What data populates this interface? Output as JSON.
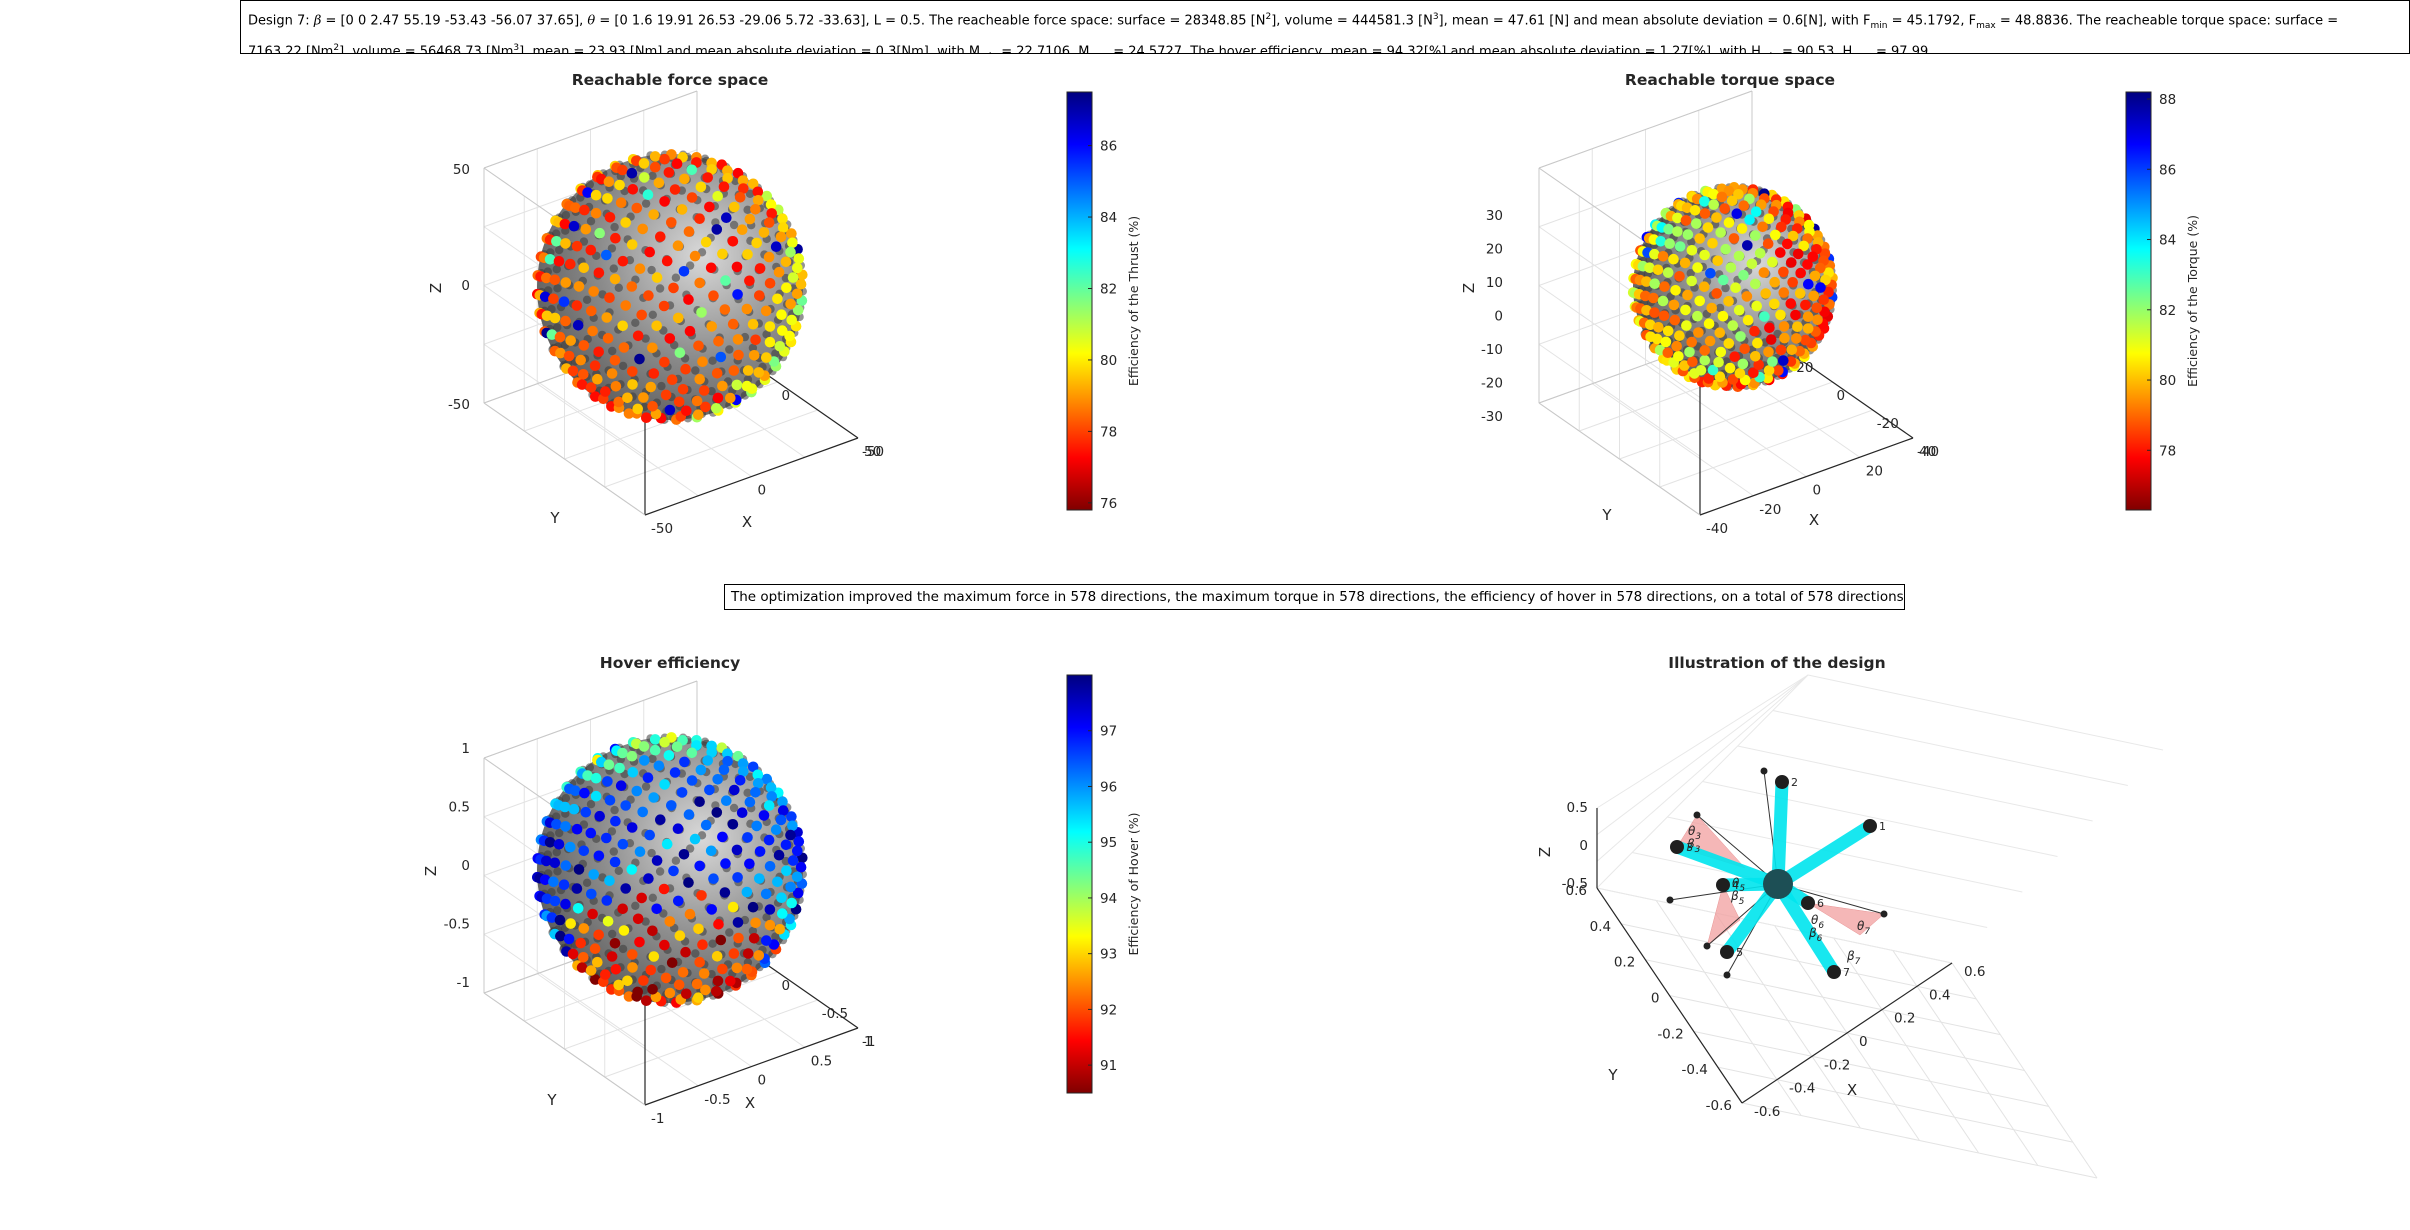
{
  "header": {
    "p1": "Design 7: ",
    "beta": "β",
    "p2": " = [0 0 2.47 55.19 -53.43 -56.07 37.65], ",
    "theta": "θ",
    "p3": " = [0 1.6 19.91 26.53 -29.06 5.72 -33.63], L = 0.5. The reacheable force space: surface = 28348.85 [N",
    "sup1": "2",
    "p4": "], volume = 444581.3 [N",
    "sup2": "3",
    "p5": "], mean = 47.61 [N] and mean absolute deviation = 0.6[N], with F",
    "sub1": "min",
    "p6": " = 45.1792, F",
    "sub2": "max",
    "p7": " = 48.8836. The reacheable torque space: surface =",
    "l2a": "7163.22 [Nm",
    "sup3": "2",
    "l2b": "], volume = 56468.73 [Nm",
    "sup4": "3",
    "l2c": "], mean = 23.93 [Nm] and mean absolute deviation = 0.3[Nm], with M",
    "sub3": "min",
    "l2d": " = 22.7106, M",
    "sub4": "max",
    "l2e": " = 24.5727. The hover efficiency, mean = 94.32[%] and mean absolute deviation = 1.27[%], with H",
    "sub5": "min",
    "l2f": " = 90.53, H",
    "sub6": "max",
    "l2g": " = 97.99"
  },
  "summary": "The optimization improved the maximum force in 578 directions, the maximum torque in 578 directions, the efficiency of hover in 578 directions, on a total of 578 directions",
  "colors": {
    "sphere": "#8c8c8c",
    "jet": [
      "#800000",
      "#ff0000",
      "#ff8000",
      "#ffff00",
      "#80ff80",
      "#00ffff",
      "#0080ff",
      "#0000ff",
      "#000080"
    ],
    "arm": "#00e5ee",
    "sector": "#f2a0a0"
  },
  "chart_data": [
    {
      "type": "scatter",
      "title": "Reachable force space",
      "xlabel": "X",
      "ylabel": "Y",
      "zlabel": "Z",
      "xticks": [
        "-50",
        "0",
        "50"
      ],
      "yticks": [
        "-50",
        "0",
        "50"
      ],
      "zticks": [
        "-50",
        "0",
        "50"
      ],
      "xlim": [
        -50,
        50
      ],
      "ylim": [
        -50,
        50
      ],
      "zlim": [
        -50,
        50
      ],
      "surface": "sphere",
      "radius_mean": 47.61,
      "point_count": 578,
      "colorbar": {
        "label": "Efficiency of the Thrust (%)",
        "ticks": [
          "76",
          "78",
          "80",
          "82",
          "84",
          "86"
        ],
        "range": [
          75.8,
          87.5
        ]
      },
      "value_distribution": {
        "mean_color_value": 78.5
      }
    },
    {
      "type": "scatter",
      "title": "Reachable torque space",
      "xlabel": "X",
      "ylabel": "Y",
      "zlabel": "Z",
      "xticks": [
        "-40",
        "-20",
        "0",
        "20",
        "40"
      ],
      "yticks": [
        "-40",
        "-20",
        "0",
        "20",
        "40"
      ],
      "zticks": [
        "-30",
        "-20",
        "-10",
        "0",
        "10",
        "20",
        "30"
      ],
      "xlim": [
        -40,
        40
      ],
      "ylim": [
        -40,
        40
      ],
      "zlim": [
        -30,
        30
      ],
      "surface": "sphere",
      "radius_mean": 23.93,
      "point_count": 578,
      "colorbar": {
        "label": "Efficiency of the Torque (%)",
        "ticks": [
          "78",
          "80",
          "82",
          "84",
          "86",
          "88"
        ],
        "range": [
          76.3,
          88.2
        ]
      }
    },
    {
      "type": "scatter",
      "title": "Hover efficiency",
      "xlabel": "X",
      "ylabel": "Y",
      "zlabel": "Z",
      "xticks": [
        "-1",
        "-0.5",
        "0",
        "0.5",
        "1"
      ],
      "yticks": [
        "-1",
        "-0.5",
        "0",
        "0.5",
        "1"
      ],
      "zticks": [
        "-1",
        "-0.5",
        "0",
        "0.5",
        "1"
      ],
      "xlim": [
        -1,
        1
      ],
      "ylim": [
        -1,
        1
      ],
      "zlim": [
        -1,
        1
      ],
      "surface": "sphere",
      "radius_mean": 1,
      "point_count": 578,
      "colorbar": {
        "label": "Efficiency of Hover (%)",
        "ticks": [
          "91",
          "92",
          "93",
          "94",
          "95",
          "96",
          "97"
        ],
        "range": [
          90.5,
          98
        ]
      }
    },
    {
      "type": "diagram3d",
      "title": "Illustration of the design",
      "xlabel": "X",
      "ylabel": "Y",
      "zlabel": "Z",
      "xticks": [
        "-0.6",
        "-0.4",
        "-0.2",
        "0",
        "0.2",
        "0.4",
        "0.6"
      ],
      "yticks": [
        "-0.6",
        "-0.4",
        "-0.2",
        "0",
        "0.2",
        "0.4",
        "0.6"
      ],
      "zticks": [
        "-0.5",
        "0",
        "0.5"
      ],
      "arm_labels": [
        "1",
        "2",
        "3",
        "4",
        "5",
        "6",
        "7"
      ],
      "beta_deg": [
        0,
        0,
        2.47,
        55.19,
        -53.43,
        -56.07,
        37.65
      ],
      "theta_deg": [
        0,
        1.6,
        19.91,
        26.53,
        -29.06,
        5.72,
        -33.63
      ],
      "arm_length": 0.5,
      "angle_labels": [
        "θ3",
        "β3",
        "θ5",
        "β5",
        "θ6",
        "θ7",
        "β6",
        "β7"
      ]
    }
  ]
}
